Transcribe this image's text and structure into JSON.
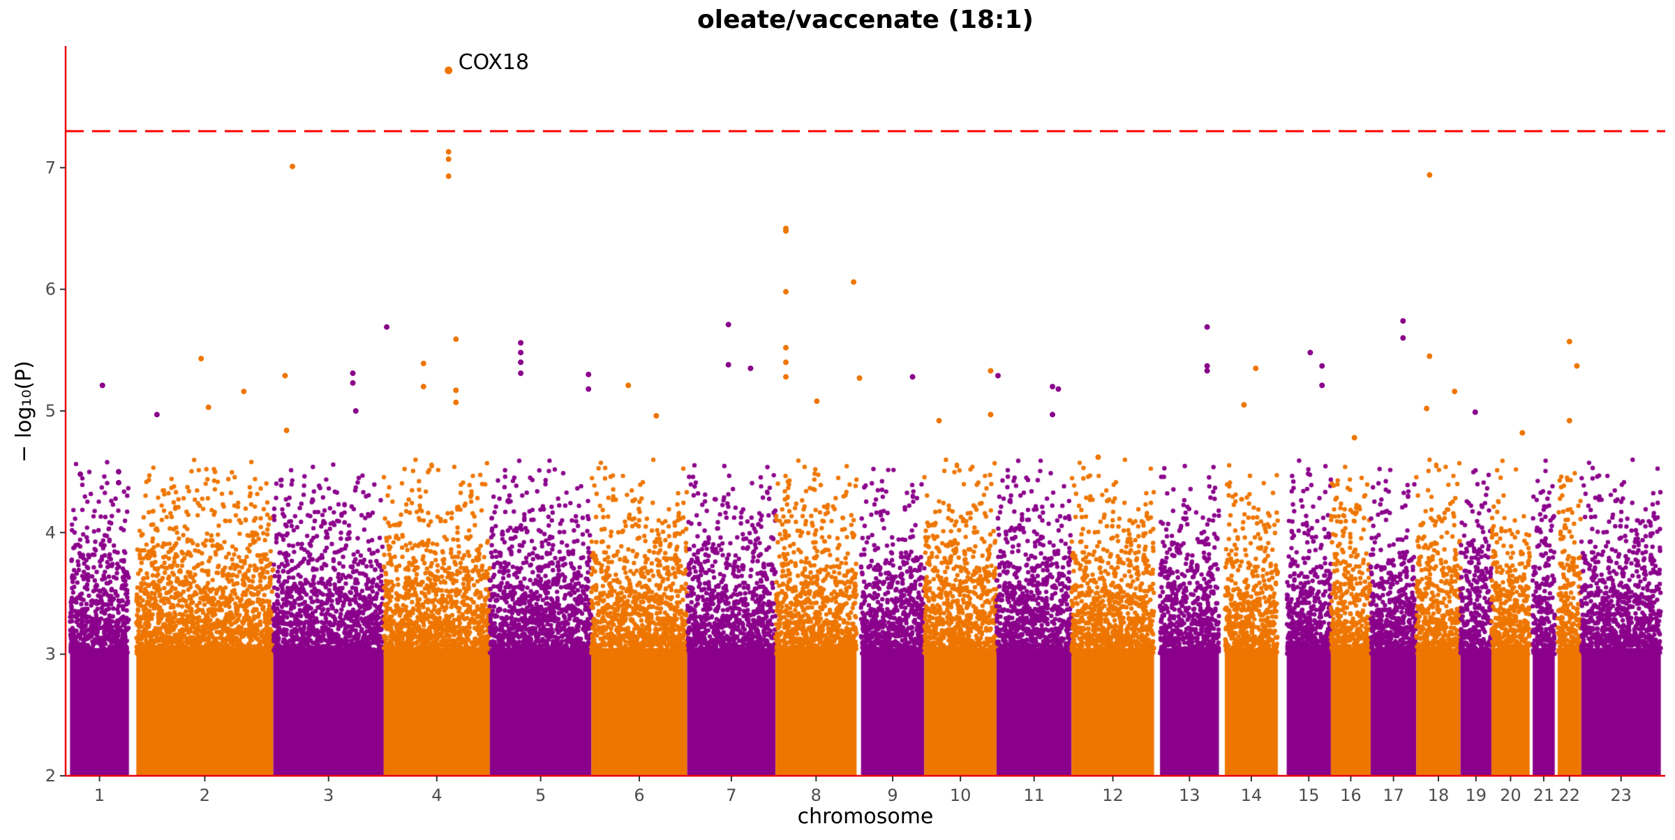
{
  "chart_data": {
    "type": "scatter",
    "title": "oleate/vaccenate (18:1)",
    "xlabel": "chromosome",
    "ylabel": "− log₁₀(P)",
    "ylim": [
      2,
      8
    ],
    "yticks": [
      2,
      3,
      4,
      5,
      6,
      7
    ],
    "grid": false,
    "legend": "none",
    "threshold": 7.3,
    "colors": {
      "odd": "#8B008B",
      "even": "#EE7600",
      "threshold": "#FF0000",
      "axis": "#E8000B",
      "text": "#000000"
    },
    "chromosomes": [
      {
        "label": "1",
        "range": [
          0.0,
          4.0
        ]
      },
      {
        "label": "2",
        "range": [
          4.5,
          13.8
        ]
      },
      {
        "label": "3",
        "range": [
          13.8,
          21.3
        ]
      },
      {
        "label": "4",
        "range": [
          21.3,
          28.5
        ]
      },
      {
        "label": "5",
        "range": [
          28.5,
          35.4
        ]
      },
      {
        "label": "6",
        "range": [
          35.4,
          41.9
        ]
      },
      {
        "label": "7",
        "range": [
          41.9,
          47.9
        ]
      },
      {
        "label": "8",
        "range": [
          47.9,
          53.4
        ]
      },
      {
        "label": "9",
        "range": [
          53.7,
          58.0
        ]
      },
      {
        "label": "10",
        "range": [
          58.0,
          62.9
        ]
      },
      {
        "label": "11",
        "range": [
          62.9,
          68.0
        ]
      },
      {
        "label": "12",
        "range": [
          68.0,
          73.6
        ]
      },
      {
        "label": "13",
        "range": [
          74.0,
          78.0
        ]
      },
      {
        "label": "14",
        "range": [
          78.4,
          82.0
        ]
      },
      {
        "label": "15",
        "range": [
          82.6,
          85.6
        ]
      },
      {
        "label": "16",
        "range": [
          85.6,
          88.3
        ]
      },
      {
        "label": "17",
        "range": [
          88.3,
          91.4
        ]
      },
      {
        "label": "18",
        "range": [
          91.4,
          94.4
        ]
      },
      {
        "label": "19",
        "range": [
          94.4,
          96.5
        ]
      },
      {
        "label": "20",
        "range": [
          96.5,
          99.1
        ]
      },
      {
        "label": "21",
        "range": [
          99.3,
          100.8
        ]
      },
      {
        "label": "22",
        "range": [
          101.0,
          102.6
        ]
      },
      {
        "label": "23",
        "range": [
          102.6,
          108.0
        ]
      }
    ],
    "xlim": [
      -0.3,
      108.3
    ],
    "points": [
      {
        "chr": "1",
        "x": 2.2,
        "y": 5.21
      },
      {
        "chr": "1",
        "x": 0.7,
        "y": 4.48
      },
      {
        "chr": "1",
        "x": 3.3,
        "y": 4.5
      },
      {
        "chr": "1",
        "x": 3.3,
        "y": 4.41
      },
      {
        "chr": "1",
        "x": 5.9,
        "y": 4.97
      },
      {
        "chr": "2",
        "x": 8.9,
        "y": 5.43
      },
      {
        "chr": "2",
        "x": 9.4,
        "y": 5.03
      },
      {
        "chr": "2",
        "x": 11.8,
        "y": 5.16
      },
      {
        "chr": "2",
        "x": 15.1,
        "y": 7.01
      },
      {
        "chr": "2",
        "x": 14.6,
        "y": 5.29
      },
      {
        "chr": "2",
        "x": 14.7,
        "y": 4.84
      },
      {
        "chr": "3",
        "x": 19.2,
        "y": 5.31
      },
      {
        "chr": "3",
        "x": 19.2,
        "y": 5.23
      },
      {
        "chr": "3",
        "x": 21.5,
        "y": 5.69
      },
      {
        "chr": "3",
        "x": 19.4,
        "y": 5.0
      },
      {
        "chr": "4",
        "x": 25.7,
        "y": 7.8
      },
      {
        "chr": "4",
        "x": 25.7,
        "y": 7.13
      },
      {
        "chr": "4",
        "x": 25.7,
        "y": 7.07
      },
      {
        "chr": "4",
        "x": 25.7,
        "y": 6.93
      },
      {
        "chr": "4",
        "x": 26.2,
        "y": 5.59
      },
      {
        "chr": "4",
        "x": 26.2,
        "y": 5.17
      },
      {
        "chr": "4",
        "x": 26.2,
        "y": 5.07
      },
      {
        "chr": "4",
        "x": 24.0,
        "y": 5.39
      },
      {
        "chr": "4",
        "x": 24.0,
        "y": 5.2
      },
      {
        "chr": "5",
        "x": 30.6,
        "y": 5.56
      },
      {
        "chr": "5",
        "x": 30.6,
        "y": 5.48
      },
      {
        "chr": "5",
        "x": 30.6,
        "y": 5.4
      },
      {
        "chr": "5",
        "x": 30.6,
        "y": 5.31
      },
      {
        "chr": "5",
        "x": 35.2,
        "y": 5.3
      },
      {
        "chr": "5",
        "x": 35.2,
        "y": 5.18
      },
      {
        "chr": "6",
        "x": 37.9,
        "y": 5.21
      },
      {
        "chr": "6",
        "x": 39.8,
        "y": 4.96
      },
      {
        "chr": "7",
        "x": 44.7,
        "y": 5.71
      },
      {
        "chr": "7",
        "x": 44.7,
        "y": 5.38
      },
      {
        "chr": "7",
        "x": 46.2,
        "y": 5.35
      },
      {
        "chr": "8",
        "x": 48.6,
        "y": 6.5
      },
      {
        "chr": "8",
        "x": 48.6,
        "y": 6.48
      },
      {
        "chr": "8",
        "x": 48.6,
        "y": 5.98
      },
      {
        "chr": "8",
        "x": 48.6,
        "y": 5.52
      },
      {
        "chr": "8",
        "x": 48.6,
        "y": 5.4
      },
      {
        "chr": "8",
        "x": 48.6,
        "y": 5.28
      },
      {
        "chr": "8",
        "x": 50.7,
        "y": 5.08
      },
      {
        "chr": "8",
        "x": 53.2,
        "y": 6.06
      },
      {
        "chr": "8",
        "x": 53.6,
        "y": 5.27
      },
      {
        "chr": "9",
        "x": 57.2,
        "y": 5.28
      },
      {
        "chr": "10",
        "x": 59.0,
        "y": 4.92
      },
      {
        "chr": "10",
        "x": 62.5,
        "y": 5.33
      },
      {
        "chr": "10",
        "x": 62.5,
        "y": 4.97
      },
      {
        "chr": "11",
        "x": 63.0,
        "y": 5.29
      },
      {
        "chr": "11",
        "x": 66.7,
        "y": 5.2
      },
      {
        "chr": "11",
        "x": 67.1,
        "y": 5.18
      },
      {
        "chr": "11",
        "x": 66.7,
        "y": 4.97
      },
      {
        "chr": "12",
        "x": 69.8,
        "y": 4.62
      },
      {
        "chr": "13",
        "x": 77.2,
        "y": 5.69
      },
      {
        "chr": "13",
        "x": 77.2,
        "y": 5.37
      },
      {
        "chr": "13",
        "x": 77.2,
        "y": 5.33
      },
      {
        "chr": "14",
        "x": 80.5,
        "y": 5.35
      },
      {
        "chr": "14",
        "x": 79.7,
        "y": 5.05
      },
      {
        "chr": "15",
        "x": 84.2,
        "y": 5.48
      },
      {
        "chr": "15",
        "x": 85.0,
        "y": 5.37
      },
      {
        "chr": "15",
        "x": 85.0,
        "y": 5.21
      },
      {
        "chr": "16",
        "x": 87.2,
        "y": 4.78
      },
      {
        "chr": "17",
        "x": 90.5,
        "y": 5.74
      },
      {
        "chr": "17",
        "x": 90.5,
        "y": 5.6
      },
      {
        "chr": "18",
        "x": 92.3,
        "y": 6.94
      },
      {
        "chr": "18",
        "x": 92.3,
        "y": 5.45
      },
      {
        "chr": "18",
        "x": 94.0,
        "y": 5.16
      },
      {
        "chr": "18",
        "x": 92.1,
        "y": 5.02
      },
      {
        "chr": "19",
        "x": 95.4,
        "y": 4.99
      },
      {
        "chr": "20",
        "x": 98.6,
        "y": 4.82
      },
      {
        "chr": "22",
        "x": 101.8,
        "y": 5.57
      },
      {
        "chr": "22",
        "x": 102.3,
        "y": 5.37
      },
      {
        "chr": "22",
        "x": 101.8,
        "y": 4.92
      }
    ],
    "annotations": [
      {
        "label": "COX18",
        "x": 25.7,
        "y": 7.8
      }
    ]
  }
}
